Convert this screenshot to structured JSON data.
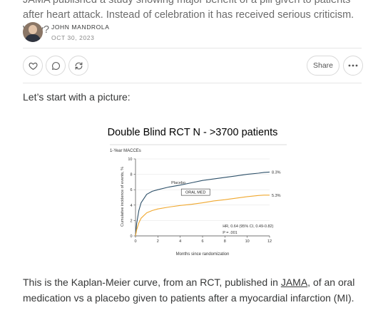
{
  "article": {
    "intro_text": "JAMA published a study showing major benefit of a pill given to patients after heart attack. Instead of celebration it has received serious criticism. Why?",
    "lead_text": "Let’s start with a picture:",
    "body_before_link": "This is the Kaplan-Meier curve, from an RCT, published in ",
    "body_link": "JAMA",
    "body_after_link": ", of an oral medication vs a placebo given to patients after a myocardial infarction (MI)."
  },
  "author": {
    "name": "JOHN MANDROLA",
    "date": "OCT 30, 2023"
  },
  "actions": {
    "like_icon": "heart-icon",
    "comment_icon": "comment-icon",
    "restack_icon": "restack-icon",
    "share_label": "Share",
    "more_icon": "ellipsis-icon"
  },
  "chart_data": {
    "type": "line",
    "title": "Double Blind RCT N - >3700 patients",
    "subtitle": "1-Year MACCEs",
    "xlabel": "Months since randomization",
    "ylabel": "Cumulative incidence of events, %",
    "xlim": [
      0,
      12
    ],
    "ylim": [
      0,
      10
    ],
    "xticks": [
      0,
      2,
      4,
      6,
      8,
      10,
      12
    ],
    "yticks": [
      0,
      2,
      4,
      6,
      8,
      10
    ],
    "x": [
      0,
      0.1,
      0.3,
      0.5,
      1,
      1.5,
      2,
      3,
      4,
      5,
      6,
      7,
      8,
      9,
      10,
      11,
      11.5,
      12
    ],
    "series": [
      {
        "name": "Placebo",
        "end_label": "8.3%",
        "color": "#2d5069",
        "values": [
          0,
          1.6,
          3.3,
          4.3,
          5.4,
          5.8,
          6.0,
          6.35,
          6.6,
          6.9,
          7.2,
          7.4,
          7.6,
          7.8,
          8.0,
          8.15,
          8.25,
          8.3
        ]
      },
      {
        "name": "ORAL MED",
        "end_label": "5.3%",
        "color": "#f0a82f",
        "values": [
          0,
          0.8,
          1.7,
          2.3,
          3.0,
          3.3,
          3.5,
          3.75,
          3.95,
          4.1,
          4.3,
          4.55,
          4.7,
          4.9,
          5.1,
          5.25,
          5.3,
          5.3
        ]
      }
    ],
    "annotation_line1": "HR, 0.64 (95% CI, 0.49-0.82)",
    "annotation_line2": "P = .001"
  }
}
